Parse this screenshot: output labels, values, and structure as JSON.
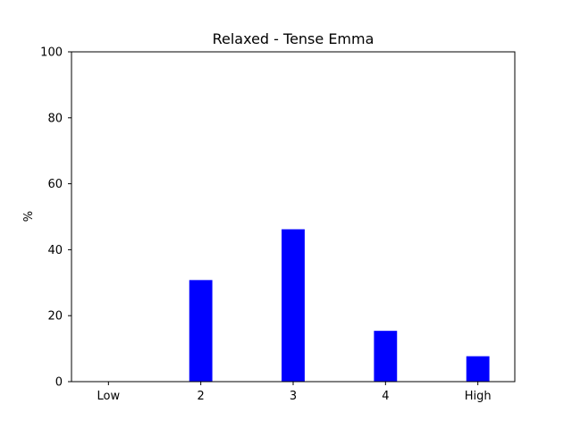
{
  "chart_data": {
    "type": "bar",
    "title": "Relaxed - Tense Emma",
    "xlabel": "",
    "ylabel": "%",
    "categories": [
      "Low",
      "2",
      "3",
      "4",
      "High"
    ],
    "values": [
      0,
      30.8,
      46.2,
      15.4,
      7.7
    ],
    "ylim": [
      0,
      100
    ],
    "yticks": [
      0,
      20,
      40,
      60,
      80,
      100
    ],
    "bar_color": "#0000ff",
    "grid": false,
    "legend": "none"
  }
}
